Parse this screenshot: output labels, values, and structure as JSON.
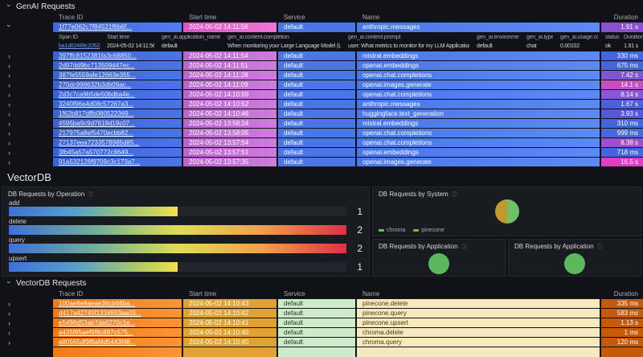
{
  "genai": {
    "section_label": "GenAI Requests",
    "table": {
      "headers": {
        "trace_id": "Trace ID",
        "start_time": "Start time",
        "service": "Service",
        "name": "Name",
        "duration": "Duration"
      },
      "selected_row": {
        "trace_id": "1f77e062c7f84521f6b6f...",
        "start_time": "2024-05-02 14:11:56",
        "service": "default",
        "name": "anthropic.messages",
        "duration": "1.91 s",
        "duration_bg": "#8a50ce"
      },
      "span_subtable": {
        "headers": {
          "span_id": "Span ID",
          "start_time": "Start time",
          "app_name": "gen_ai.application_name",
          "completion": "gen_ai.content.completion",
          "prompt": "gen_ai.content.prompt",
          "environment": "gen_ai.environment",
          "type": "gen_ai.type",
          "cost": "gen_ai.usage.cost",
          "status": "status",
          "duration": "Duration"
        },
        "row": {
          "span_id": "ba1d02489c2052c3",
          "start_time": "2024-05-02 14:11:56",
          "app_name": "default",
          "completion": "When monitoring your Large Language Model (LLM",
          "prompt": "user: What metrics to monitor for my LLM Applications?",
          "environment": "default",
          "type": "chat",
          "cost": "0.00102",
          "status": "ok",
          "duration": "1.91 s"
        }
      },
      "rows": [
        {
          "trace_id": "397ffc8152381fa3c68850...",
          "start_time": "2024-05-02 14:11:54",
          "service": "default",
          "name": "mistral.embeddings",
          "duration": "330 ms",
          "duration_bg": "#4565dc"
        },
        {
          "trace_id": "2d97dd9bc713509d47ec...",
          "start_time": "2024-05-02 14:11:51",
          "service": "default",
          "name": "openai.embeddings",
          "duration": "675 ms",
          "duration_bg": "#4565dc"
        },
        {
          "trace_id": "387fe5559afe12663e355...",
          "start_time": "2024-05-02 14:11:28",
          "service": "default",
          "name": "openai.chat.completions",
          "duration": "7.42 s",
          "duration_bg": "#7e55d2"
        },
        {
          "trace_id": "270dc998632b3db09ac...",
          "start_time": "2024-05-02 14:11:09",
          "service": "default",
          "name": "openai.images.generate",
          "duration": "14.1 s",
          "duration_bg": "#c44fc8"
        },
        {
          "trace_id": "2d3c7ca9b5de50bdba4e...",
          "start_time": "2024-05-02 14:10:59",
          "service": "default",
          "name": "openai.chat.completions",
          "duration": "8.14 s",
          "duration_bg": "#8a57d6"
        },
        {
          "trace_id": "3240f96a4d08c57267a3...",
          "start_time": "2024-05-02 14:10:52",
          "service": "default",
          "name": "anthropic.messages",
          "duration": "1.67 s",
          "duration_bg": "#4d60d8"
        },
        {
          "trace_id": "1f62b817dffb080522369...",
          "start_time": "2024-05-02 14:10:46",
          "service": "default",
          "name": "huggingface.text_generation",
          "duration": "3.93 s",
          "duration_bg": "#5558d8"
        },
        {
          "trace_id": "4595ba9c9d7619d19c07...",
          "start_time": "2024-05-02 13:58:24",
          "service": "default",
          "name": "mistral.embeddings",
          "duration": "310 ms",
          "duration_bg": "#4565dc"
        },
        {
          "trace_id": "217975a8ef5470ecbb82...",
          "start_time": "2024-05-02 13:58:05",
          "service": "default",
          "name": "openai.chat.completions",
          "duration": "999 ms",
          "duration_bg": "#4767de"
        },
        {
          "trace_id": "27137eea7233578985d85...",
          "start_time": "2024-05-02 13:57:54",
          "service": "default",
          "name": "openai.chat.completions",
          "duration": "8.38 s",
          "duration_bg": "#a04fd0"
        },
        {
          "trace_id": "3fb45a57a570772c8649...",
          "start_time": "2024-05-02 13:57:51",
          "service": "default",
          "name": "openai.embeddings",
          "duration": "718 ms",
          "duration_bg": "#4565dc"
        },
        {
          "trace_id": "91a532126f9709c3c173a7...",
          "start_time": "2024-05-02 13:57:35",
          "service": "default",
          "name": "openai.images.generate",
          "duration": "16.5 s",
          "duration_bg": "#e03ec4"
        }
      ]
    }
  },
  "vectordb": {
    "section_title": "VectorDB",
    "operation_panel": {
      "title": "DB Requests by Operation",
      "info_icon": "ⓘ",
      "bars": [
        {
          "label": "add",
          "value": "1",
          "percent": 50
        },
        {
          "label": "delete",
          "value": "2",
          "percent": 100
        },
        {
          "label": "query",
          "value": "2",
          "percent": 100
        },
        {
          "label": "upsert",
          "value": "1",
          "percent": 50
        }
      ]
    },
    "system_panel": {
      "title": "DB Requests by System",
      "info_icon": "ⓘ",
      "slices": [
        {
          "label": "chroma",
          "value": 1,
          "color": "#73bf69"
        },
        {
          "label": "pinecone",
          "value": 1,
          "color": "#c0992b"
        }
      ],
      "legend": [
        {
          "label": "chroma",
          "color": "#73bf69"
        },
        {
          "label": "pinecone",
          "color": "#c0992b"
        }
      ]
    },
    "app_panel_1": {
      "title": "DB Requests by Application",
      "info_icon": "ⓘ",
      "slices": [
        {
          "label": "",
          "value": 1,
          "color": "#5cb85c"
        }
      ]
    },
    "app_panel_2": {
      "title": "DB Requests by Application",
      "info_icon": "ⓘ",
      "slices": [
        {
          "label": "",
          "value": 1,
          "color": "#5cb85c"
        }
      ]
    }
  },
  "vectordb_requests": {
    "section_label": "VectorDB Requests",
    "table": {
      "headers": {
        "trace_id": "Trace ID",
        "start_time": "Start time",
        "service": "Service",
        "name": "Name",
        "duration": "Duration"
      },
      "rows": [
        {
          "trace_id": "100ae8e8aeae36cb68ba...",
          "start_time": "2024-05-02 14:10:43",
          "service": "default",
          "name": "pinecone.delete",
          "duration": "335 ms"
        },
        {
          "trace_id": "d417a42745f1334553aa03...",
          "start_time": "2024-05-02 14:10:42",
          "service": "default",
          "name": "pinecone.query",
          "duration": "583 ms"
        },
        {
          "trace_id": "e5498d53ab7da6270c1e...",
          "start_time": "2024-05-02 14:10:41",
          "service": "default",
          "name": "pinecone.upsert",
          "duration": "1.13 s"
        },
        {
          "trace_id": "a435f85aef9f8c887c575...",
          "start_time": "2024-05-02 14:10:40",
          "service": "default",
          "name": "chroma.delete",
          "duration": "1 ms"
        },
        {
          "trace_id": "a80565df9f8af4d5443f48...",
          "start_time": "2024-05-02 14:10:40",
          "service": "default",
          "name": "chroma.query",
          "duration": "120 ms"
        }
      ]
    }
  }
}
